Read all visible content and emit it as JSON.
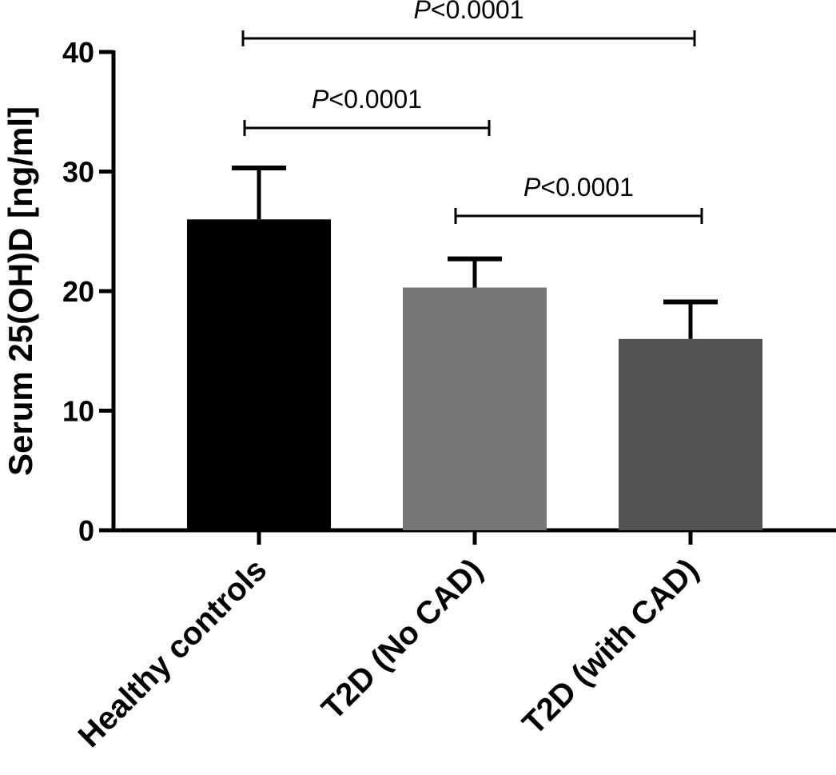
{
  "chart_data": {
    "type": "bar",
    "ylabel": "Serum 25(OH)D [ng/ml]",
    "xlabel": "",
    "ylim": [
      0,
      40
    ],
    "yticks": [
      "0",
      "10",
      "20",
      "30",
      "40"
    ],
    "categories": [
      "Healthy controls",
      "T2D (No CAD)",
      "T2D (with CAD)"
    ],
    "values": [
      26.0,
      20.3,
      16.0
    ],
    "error_upper": [
      4.3,
      2.4,
      3.1
    ],
    "colors": [
      "#000000",
      "#777777",
      "#535353"
    ],
    "grid": false,
    "legend": "none",
    "significance": [
      {
        "from": 0,
        "to": 2,
        "y": 41,
        "p_symbol": "P",
        "p_value": "<0.0001"
      },
      {
        "from": 0,
        "to": 1,
        "y": 33.5,
        "p_symbol": "P",
        "p_value": "<0.0001"
      },
      {
        "from": 1,
        "to": 2,
        "y": 26.1,
        "p_symbol": "P",
        "p_value": "<0.0001"
      }
    ]
  }
}
